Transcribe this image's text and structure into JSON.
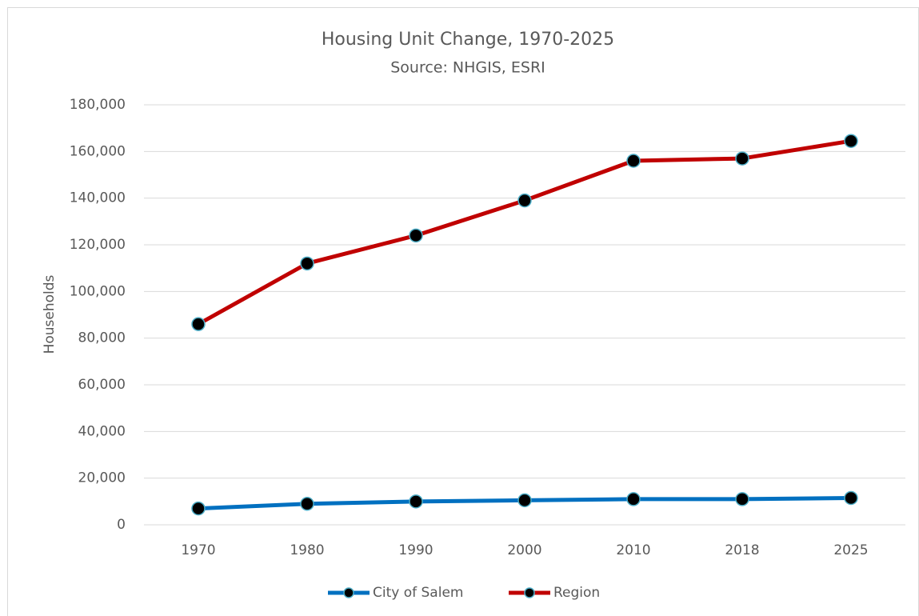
{
  "chart_data": {
    "type": "line",
    "title": "Housing Unit Change, 1970-2025",
    "subtitle": "Source: NHGIS, ESRI",
    "y_label": "Households",
    "categories": [
      "1970",
      "1980",
      "1990",
      "2000",
      "2010",
      "2018",
      "2025"
    ],
    "series": [
      {
        "name": "City of Salem",
        "color": "#0070c0",
        "values": [
          7000,
          9000,
          10000,
          10500,
          11000,
          11000,
          11500
        ]
      },
      {
        "name": "Region",
        "color": "#c00000",
        "values": [
          86000,
          112000,
          124000,
          139000,
          156000,
          157000,
          164500
        ]
      }
    ],
    "marker_color": "#000000",
    "marker_edge": "#4bacc6",
    "ylim": [
      0,
      180000
    ],
    "yticks": [
      0,
      {
        "value": 20000,
        "label": "20,000"
      },
      {
        "value": 40000,
        "label": "40,000"
      },
      {
        "value": 60000,
        "label": "60,000"
      },
      {
        "value": 80000,
        "label": "80,000"
      },
      {
        "value": 100000,
        "label": "100,000"
      },
      {
        "value": 120000,
        "label": "120,000"
      },
      {
        "value": 140000,
        "label": "140,000"
      },
      {
        "value": 160000,
        "label": "160,000"
      },
      {
        "value": 180000,
        "label": "180,000"
      }
    ],
    "grid": true,
    "legend": "bottom"
  }
}
